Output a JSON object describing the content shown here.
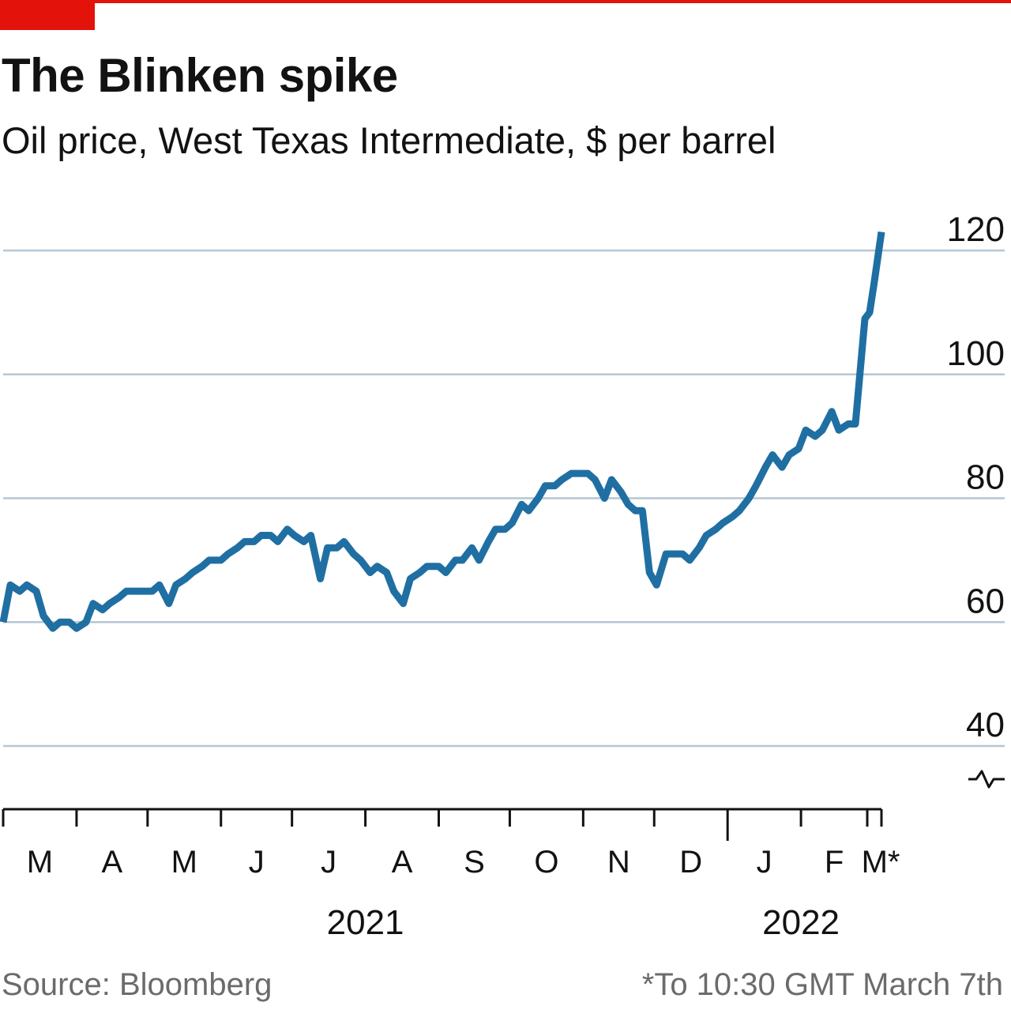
{
  "header": {
    "title": "The Blinken spike",
    "subtitle": "Oil price, West Texas Intermediate, $ per barrel"
  },
  "footer": {
    "source": "Source: Bloomberg",
    "note": "*To 10:30 GMT March 7th"
  },
  "colors": {
    "line": "#1f6fa3",
    "grid": "#b4c6d4",
    "accent": "#e3120b",
    "axis": "#121212"
  },
  "chart_data": {
    "type": "line",
    "title": "The Blinken spike",
    "subtitle": "Oil price, West Texas Intermediate, $ per barrel",
    "ylim": [
      40,
      120
    ],
    "y_ticks": [
      40,
      60,
      80,
      100,
      120
    ],
    "y_axis_side": "right",
    "y_axis_broken": true,
    "grid": true,
    "x_range": [
      "2021-03-01",
      "2022-03-07"
    ],
    "x_month_labels": [
      {
        "date": "2021-03-01",
        "label": "M"
      },
      {
        "date": "2021-04-01",
        "label": "A"
      },
      {
        "date": "2021-05-01",
        "label": "M"
      },
      {
        "date": "2021-06-01",
        "label": "J"
      },
      {
        "date": "2021-07-01",
        "label": "J"
      },
      {
        "date": "2021-08-01",
        "label": "A"
      },
      {
        "date": "2021-09-01",
        "label": "S"
      },
      {
        "date": "2021-10-01",
        "label": "O"
      },
      {
        "date": "2021-11-01",
        "label": "N"
      },
      {
        "date": "2021-12-01",
        "label": "D"
      },
      {
        "date": "2022-01-01",
        "label": "J"
      },
      {
        "date": "2022-02-01",
        "label": "F"
      },
      {
        "date": "2022-03-01",
        "label": "M*"
      }
    ],
    "x_year_labels": [
      {
        "label": "2021",
        "date": "2021-08-01"
      },
      {
        "label": "2022",
        "date": "2022-02-01"
      }
    ],
    "series": [
      {
        "x": [
          "2021-03-01",
          "2021-03-04",
          "2021-03-08",
          "2021-03-11",
          "2021-03-15",
          "2021-03-18",
          "2021-03-22",
          "2021-03-25",
          "2021-03-29",
          "2021-04-01",
          "2021-04-05",
          "2021-04-08",
          "2021-04-12",
          "2021-04-15",
          "2021-04-19",
          "2021-04-22",
          "2021-04-26",
          "2021-04-29",
          "2021-05-03",
          "2021-05-06",
          "2021-05-10",
          "2021-05-13",
          "2021-05-17",
          "2021-05-20",
          "2021-05-24",
          "2021-05-27",
          "2021-06-01",
          "2021-06-04",
          "2021-06-08",
          "2021-06-11",
          "2021-06-15",
          "2021-06-18",
          "2021-06-22",
          "2021-06-25",
          "2021-06-29",
          "2021-07-02",
          "2021-07-06",
          "2021-07-09",
          "2021-07-13",
          "2021-07-16",
          "2021-07-20",
          "2021-07-23",
          "2021-07-27",
          "2021-07-30",
          "2021-08-03",
          "2021-08-06",
          "2021-08-10",
          "2021-08-13",
          "2021-08-17",
          "2021-08-20",
          "2021-08-24",
          "2021-08-27",
          "2021-09-01",
          "2021-09-04",
          "2021-09-08",
          "2021-09-11",
          "2021-09-15",
          "2021-09-18",
          "2021-09-22",
          "2021-09-25",
          "2021-09-29",
          "2021-10-02",
          "2021-10-06",
          "2021-10-09",
          "2021-10-13",
          "2021-10-16",
          "2021-10-20",
          "2021-10-23",
          "2021-10-27",
          "2021-10-30",
          "2021-11-03",
          "2021-11-06",
          "2021-11-10",
          "2021-11-13",
          "2021-11-17",
          "2021-11-20",
          "2021-11-23",
          "2021-11-26",
          "2021-11-29",
          "2021-12-02",
          "2021-12-06",
          "2021-12-09",
          "2021-12-13",
          "2021-12-16",
          "2021-12-20",
          "2021-12-23",
          "2021-12-27",
          "2021-12-30",
          "2022-01-03",
          "2022-01-06",
          "2022-01-10",
          "2022-01-13",
          "2022-01-17",
          "2022-01-20",
          "2022-01-24",
          "2022-01-27",
          "2022-01-31",
          "2022-02-03",
          "2022-02-07",
          "2022-02-10",
          "2022-02-14",
          "2022-02-17",
          "2022-02-21",
          "2022-02-24",
          "2022-02-28",
          "2022-03-02",
          "2022-03-04",
          "2022-03-07"
        ],
        "y": [
          60,
          66,
          65,
          66,
          65,
          61,
          59,
          60,
          60,
          59,
          60,
          63,
          62,
          63,
          64,
          65,
          65,
          65,
          65,
          66,
          63,
          66,
          67,
          68,
          69,
          70,
          70,
          71,
          72,
          73,
          73,
          74,
          74,
          73,
          75,
          74,
          73,
          74,
          67,
          72,
          72,
          73,
          71,
          70,
          68,
          69,
          68,
          65,
          63,
          67,
          68,
          69,
          69,
          68,
          70,
          70,
          72,
          70,
          73,
          75,
          75,
          76,
          79,
          78,
          80,
          82,
          82,
          83,
          84,
          84,
          84,
          83,
          80,
          83,
          81,
          79,
          78,
          78,
          68,
          66,
          71,
          71,
          71,
          70,
          72,
          74,
          75,
          76,
          77,
          78,
          80,
          82,
          85,
          87,
          85,
          87,
          88,
          91,
          90,
          91,
          94,
          91,
          92,
          92,
          109,
          110,
          115,
          123
        ]
      }
    ]
  }
}
